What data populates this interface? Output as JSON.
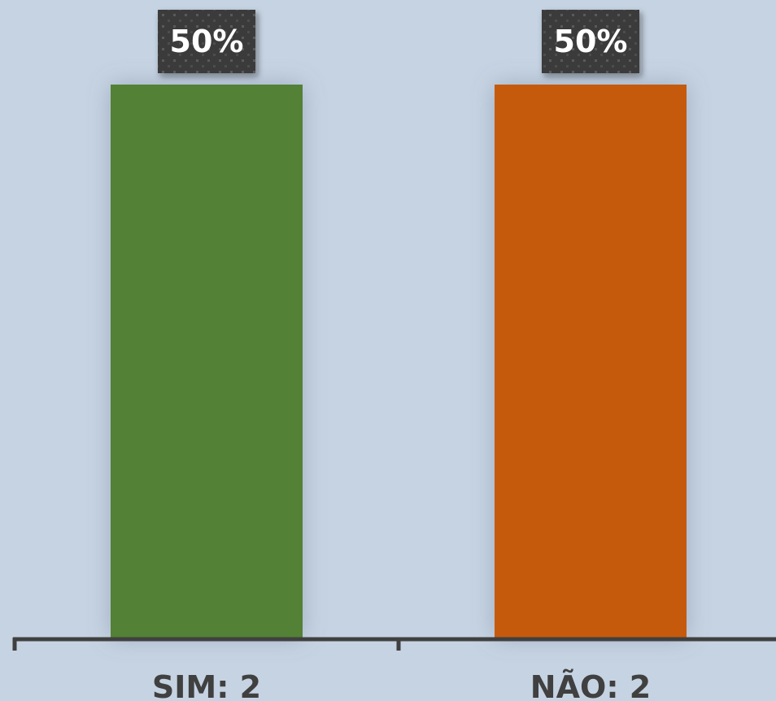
{
  "chart_data": {
    "type": "bar",
    "title": "",
    "xlabel": "",
    "ylabel": "",
    "categories": [
      "SIM: 2",
      "NÃO: 2"
    ],
    "values": [
      50,
      50
    ],
    "value_unit": "%",
    "data_labels": [
      "50%",
      "50%"
    ],
    "ylim": [
      0,
      50
    ],
    "grid": false,
    "legend": "none",
    "colors": {
      "background": "#c6d3e2",
      "bars": [
        "#538135",
        "#c55a11"
      ],
      "label_box": "#3a3a3a",
      "label_text": "#ffffff",
      "axis": "#404040",
      "tick_label": "#404040"
    }
  }
}
